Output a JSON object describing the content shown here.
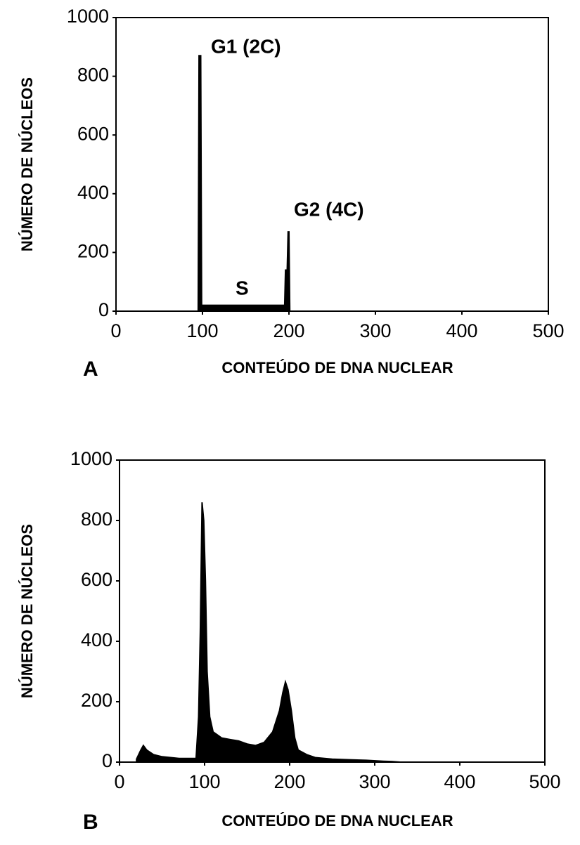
{
  "chart_data": [
    {
      "type": "area",
      "panel_label": "A",
      "x_label": "CONTEÚDO DE DNA NUCLEAR",
      "y_label": "NÚMERO DE NÚCLEOS",
      "annotations": [
        "G1 (2C)",
        "G2 (4C)",
        "S"
      ],
      "color": "#000000",
      "x": [
        95,
        96,
        98,
        99,
        195,
        196,
        198,
        199,
        200,
        201
      ],
      "values": [
        0,
        870,
        870,
        20,
        20,
        140,
        140,
        270,
        270,
        0
      ],
      "xlim": [
        0,
        500
      ],
      "ylim": [
        0,
        1000
      ],
      "xticks": [
        0,
        100,
        200,
        300,
        400,
        500
      ],
      "yticks": [
        0,
        200,
        400,
        600,
        800,
        1000
      ]
    },
    {
      "type": "area",
      "panel_label": "B",
      "x_label": "CONTEÚDO DE DNA NUCLEAR",
      "y_label": "NÚMERO DE NÚCLEOS",
      "color": "#000000",
      "x": [
        20,
        25,
        28,
        32,
        40,
        50,
        60,
        70,
        80,
        90,
        93,
        95,
        97,
        99,
        101,
        103,
        106,
        110,
        120,
        130,
        140,
        150,
        160,
        170,
        180,
        188,
        192,
        195,
        198,
        202,
        206,
        210,
        220,
        230,
        250,
        270,
        290,
        310,
        320,
        330
      ],
      "values": [
        10,
        40,
        55,
        40,
        25,
        18,
        15,
        12,
        12,
        12,
        150,
        430,
        860,
        800,
        600,
        300,
        150,
        100,
        80,
        75,
        70,
        60,
        55,
        65,
        100,
        170,
        230,
        265,
        240,
        170,
        80,
        40,
        25,
        15,
        10,
        8,
        6,
        3,
        2,
        0
      ],
      "xlim": [
        0,
        500
      ],
      "ylim": [
        0,
        1000
      ],
      "xticks": [
        0,
        100,
        200,
        300,
        400,
        500
      ],
      "yticks": [
        0,
        200,
        400,
        600,
        800,
        1000
      ]
    }
  ]
}
